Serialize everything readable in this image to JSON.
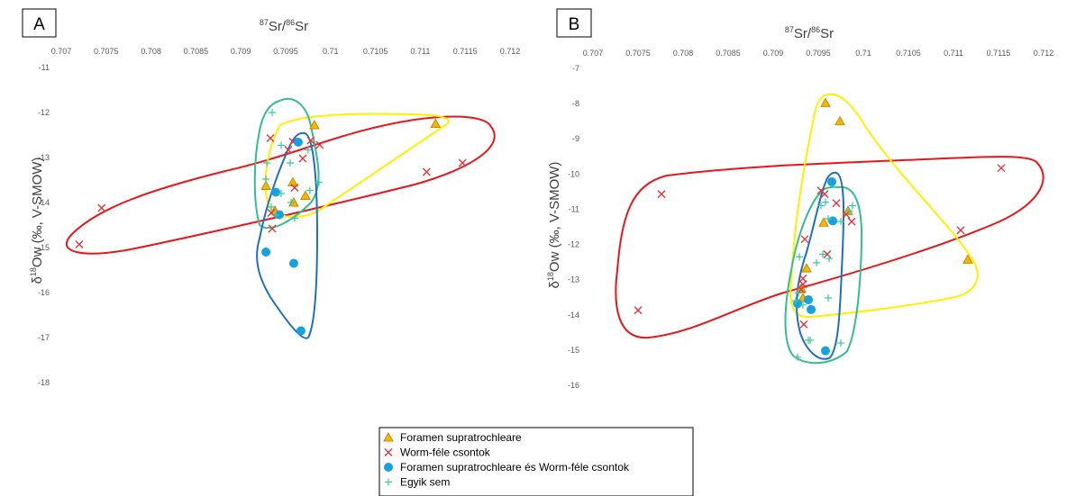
{
  "legend": [
    {
      "label": "Foramen supratrochleare",
      "marker": "triangle",
      "color": "#F5B700",
      "stroke": "#C58A00"
    },
    {
      "label": "Worm-féle csontok",
      "marker": "x",
      "color": "#E8323C"
    },
    {
      "label": "Foramen supratrochleare és Worm-féle csontok",
      "marker": "circle",
      "color": "#15A2DD"
    },
    {
      "label": "Egyik sem",
      "marker": "plus",
      "color": "#3CC7A0"
    }
  ],
  "hull_colors": {
    "yellow": "#FFF000",
    "red": "#E8161B",
    "blue": "#1F6FBF",
    "teal": "#35BC8F"
  },
  "chart_data": [
    {
      "panel": "A",
      "type": "scatter",
      "xlabel": {
        "sup1": "87",
        "base1": "Sr/",
        "sup2": "86",
        "base2": "Sr"
      },
      "ylabel": {
        "pre": "δ",
        "sup": "18",
        "base": "Ow (‰, V-SMOW)"
      },
      "xlim": [
        0.707,
        0.712
      ],
      "ylim": [
        -18,
        -11
      ],
      "xticks": [
        "0.707",
        "0.7075",
        "0.708",
        "0.7085",
        "0.709",
        "0.7095",
        "0.71",
        "0.7105",
        "0.711",
        "0.7115",
        "0.712"
      ],
      "yticks": [
        "-11",
        "-12",
        "-13",
        "-14",
        "-15",
        "-16",
        "-17",
        "-18"
      ],
      "series": [
        {
          "marker": "triangle",
          "points": [
            [
              0.70982,
              -12.28
            ],
            [
              0.71117,
              -12.25
            ],
            [
              0.70928,
              -13.63
            ],
            [
              0.70938,
              -14.18
            ],
            [
              0.70958,
              -13.55
            ],
            [
              0.70959,
              -14.0
            ],
            [
              0.70972,
              -13.85
            ]
          ]
        },
        {
          "marker": "x",
          "points": [
            [
              0.70745,
              -14.12
            ],
            [
              0.7072,
              -14.93
            ],
            [
              0.70933,
              -12.57
            ],
            [
              0.70953,
              -12.83
            ],
            [
              0.70958,
              -12.65
            ],
            [
              0.70978,
              -12.62
            ],
            [
              0.70988,
              -12.72
            ],
            [
              0.70969,
              -13.02
            ],
            [
              0.7096,
              -13.67
            ],
            [
              0.70934,
              -14.23
            ],
            [
              0.70935,
              -14.58
            ],
            [
              0.71107,
              -13.32
            ],
            [
              0.71147,
              -13.12
            ]
          ]
        },
        {
          "marker": "circle",
          "points": [
            [
              0.70964,
              -12.66
            ],
            [
              0.70939,
              -13.77
            ],
            [
              0.70943,
              -14.27
            ],
            [
              0.70928,
              -15.1
            ],
            [
              0.70959,
              -15.35
            ],
            [
              0.70967,
              -16.85
            ]
          ]
        },
        {
          "marker": "plus",
          "points": [
            [
              0.70935,
              -12.0
            ],
            [
              0.70929,
              -13.12
            ],
            [
              0.70945,
              -12.73
            ],
            [
              0.70975,
              -12.83
            ],
            [
              0.70955,
              -13.12
            ],
            [
              0.70928,
              -13.48
            ],
            [
              0.70934,
              -14.1
            ],
            [
              0.70945,
              -13.8
            ],
            [
              0.70956,
              -14.0
            ],
            [
              0.7096,
              -14.35
            ],
            [
              0.70977,
              -13.73
            ],
            [
              0.70987,
              -13.55
            ],
            [
              0.70939,
              -14.28
            ]
          ]
        }
      ]
    },
    {
      "panel": "B",
      "type": "scatter",
      "xlabel": {
        "sup1": "87",
        "base1": "Sr/",
        "sup2": "86",
        "base2": "Sr"
      },
      "ylabel": {
        "pre": "δ",
        "sup": "18",
        "base": "Ow (‰, V-SMOW)"
      },
      "xlim": [
        0.707,
        0.712
      ],
      "ylim": [
        -16,
        -7
      ],
      "xticks": [
        "0.707",
        "0.7075",
        "0.708",
        "0.7085",
        "0.709",
        "0.7095",
        "0.71",
        "0.7105",
        "0.711",
        "0.7115",
        "0.712"
      ],
      "yticks": [
        "-7",
        "-8",
        "-9",
        "-10",
        "-11",
        "-12",
        "-13",
        "-14",
        "-15",
        "-16"
      ],
      "series": [
        {
          "marker": "triangle",
          "points": [
            [
              0.70958,
              -7.98
            ],
            [
              0.70974,
              -8.5
            ],
            [
              0.70983,
              -11.05
            ],
            [
              0.70956,
              -11.38
            ],
            [
              0.70937,
              -12.68
            ],
            [
              0.71116,
              -12.43
            ],
            [
              0.70931,
              -13.25
            ],
            [
              0.70933,
              -13.52
            ]
          ]
        },
        {
          "marker": "x",
          "points": [
            [
              0.70776,
              -10.57
            ],
            [
              0.7075,
              -13.87
            ],
            [
              0.70957,
              -10.57
            ],
            [
              0.70953,
              -10.47
            ],
            [
              0.7097,
              -10.83
            ],
            [
              0.70981,
              -11.15
            ],
            [
              0.70987,
              -11.35
            ],
            [
              0.70935,
              -11.85
            ],
            [
              0.7096,
              -12.28
            ],
            [
              0.70933,
              -12.97
            ],
            [
              0.70933,
              -13.13
            ],
            [
              0.70931,
              -13.28
            ],
            [
              0.70934,
              -14.27
            ],
            [
              0.71108,
              -11.6
            ],
            [
              0.71153,
              -9.83
            ]
          ]
        },
        {
          "marker": "circle",
          "points": [
            [
              0.70965,
              -10.22
            ],
            [
              0.70966,
              -11.33
            ],
            [
              0.70927,
              -13.68
            ],
            [
              0.70939,
              -13.57
            ],
            [
              0.70942,
              -13.85
            ],
            [
              0.70958,
              -15.02
            ]
          ]
        },
        {
          "marker": "plus",
          "points": [
            [
              0.70958,
              -10.8
            ],
            [
              0.70961,
              -11.27
            ],
            [
              0.70953,
              -10.9
            ],
            [
              0.70975,
              -11.35
            ],
            [
              0.70984,
              -11.05
            ],
            [
              0.70988,
              -10.9
            ],
            [
              0.70955,
              -12.28
            ],
            [
              0.70962,
              -12.4
            ],
            [
              0.70948,
              -12.52
            ],
            [
              0.70929,
              -12.35
            ],
            [
              0.70928,
              -13.38
            ],
            [
              0.70961,
              -13.52
            ],
            [
              0.70925,
              -13.6
            ],
            [
              0.70933,
              -13.72
            ],
            [
              0.70941,
              -14.72
            ],
            [
              0.70927,
              -15.2
            ],
            [
              0.70939,
              -14.72
            ],
            [
              0.70975,
              -14.8
            ]
          ]
        }
      ]
    }
  ]
}
